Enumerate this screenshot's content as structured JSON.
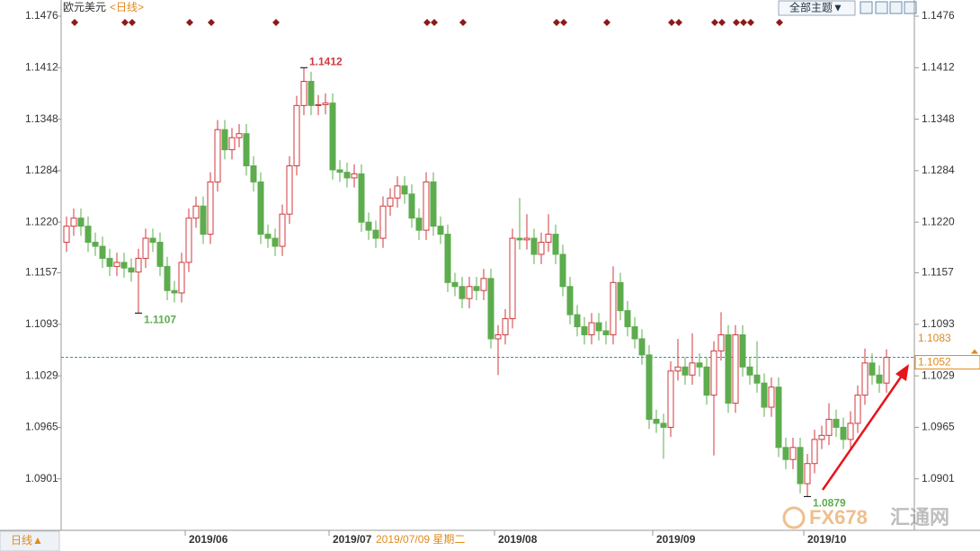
{
  "chart_data": {
    "type": "candlestick",
    "title": "欧元美元",
    "subtitle": "<日线>",
    "categories": [
      null,
      null,
      null,
      null,
      null,
      null,
      null,
      null,
      null,
      null,
      null,
      null,
      null,
      null,
      null,
      null,
      null,
      "2019/06",
      null,
      null,
      null,
      null,
      null,
      null,
      null,
      null,
      null,
      null,
      null,
      null,
      null,
      null,
      null,
      null,
      null,
      null,
      null,
      "2019/07",
      null,
      null,
      null,
      null,
      null,
      null,
      null,
      null,
      null,
      null,
      null,
      null,
      null,
      null,
      null,
      null,
      null,
      null,
      null,
      null,
      null,
      null,
      "2019/08",
      null,
      null,
      null,
      null,
      null,
      null,
      null,
      null,
      null,
      null,
      null,
      null,
      null,
      null,
      null,
      null,
      null,
      null,
      null,
      null,
      null,
      "2019/09",
      null,
      null,
      null,
      null,
      null,
      null,
      null,
      null,
      null,
      null,
      null,
      null,
      null,
      null,
      null,
      null,
      null,
      null,
      null,
      null,
      "2019/10",
      null,
      null,
      null,
      null,
      null,
      null,
      null,
      null,
      null,
      null,
      null
    ],
    "open": [
      1.1195,
      1.1215,
      1.1225,
      1.1215,
      1.1195,
      1.119,
      1.1175,
      1.1165,
      1.117,
      1.1163,
      1.1158,
      1.1175,
      1.12,
      1.1195,
      1.1165,
      1.1135,
      1.1132,
      1.117,
      1.1225,
      1.124,
      1.1205,
      1.127,
      1.1335,
      1.131,
      1.1325,
      1.133,
      1.129,
      1.127,
      1.1205,
      1.12,
      1.119,
      1.123,
      1.129,
      1.1365,
      1.1395,
      1.1365,
      1.1366,
      1.1368,
      1.1285,
      1.1282,
      1.1275,
      1.128,
      1.122,
      1.121,
      1.12,
      1.124,
      1.125,
      1.1265,
      1.1255,
      1.1225,
      1.121,
      1.127,
      1.1215,
      1.1205,
      1.1145,
      1.114,
      1.1125,
      1.114,
      1.1135,
      1.115,
      1.1075,
      1.108,
      1.11,
      1.12,
      1.1198,
      1.12,
      1.118,
      1.1195,
      1.1205,
      1.118,
      1.114,
      1.1105,
      1.109,
      1.108,
      1.1095,
      1.1085,
      1.108,
      1.1145,
      1.111,
      1.109,
      1.1075,
      1.1055,
      1.0975,
      1.097,
      1.0965,
      1.1035,
      1.104,
      1.103,
      1.1045,
      1.104,
      1.1005,
      1.106,
      1.108,
      1.0995,
      1.108,
      1.104,
      1.103,
      1.102,
      1.099,
      1.1015,
      1.094,
      1.0925,
      1.094,
      1.0895,
      1.092,
      1.095,
      1.0955,
      1.0975,
      1.0965,
      1.095,
      1.097,
      1.1005,
      1.1045,
      1.103,
      1.102
    ],
    "high": [
      1.1227,
      1.1237,
      1.1237,
      1.1227,
      1.1207,
      1.1202,
      1.1187,
      1.1182,
      1.1182,
      1.1175,
      1.1187,
      1.1212,
      1.1212,
      1.1207,
      1.1177,
      1.1147,
      1.1182,
      1.1237,
      1.1252,
      1.1252,
      1.1282,
      1.1347,
      1.1347,
      1.1337,
      1.1342,
      1.1342,
      1.1302,
      1.1282,
      1.1217,
      1.1212,
      1.1242,
      1.1302,
      1.1377,
      1.1412,
      1.1407,
      1.1378,
      1.138,
      1.138,
      1.1297,
      1.1294,
      1.1292,
      1.1292,
      1.1232,
      1.1222,
      1.1252,
      1.1262,
      1.1277,
      1.1277,
      1.1267,
      1.1237,
      1.1282,
      1.1282,
      1.1227,
      1.1217,
      1.1157,
      1.1152,
      1.1152,
      1.1152,
      1.1162,
      1.1162,
      1.1092,
      1.1112,
      1.1212,
      1.125,
      1.123,
      1.1212,
      1.1207,
      1.123,
      1.1217,
      1.1192,
      1.1152,
      1.1117,
      1.1102,
      1.1107,
      1.1107,
      1.1097,
      1.1165,
      1.1157,
      1.1122,
      1.1102,
      1.1087,
      1.1067,
      1.0987,
      1.0982,
      1.1047,
      1.1075,
      1.1052,
      1.1082,
      1.1057,
      1.1052,
      1.1072,
      1.1108,
      1.1092,
      1.1092,
      1.1092,
      1.1052,
      1.1072,
      1.1032,
      1.1027,
      1.1027,
      1.0952,
      1.0952,
      1.0952,
      1.0932,
      1.0962,
      1.0967,
      1.0995,
      1.0987,
      1.0977,
      1.0985,
      1.1017,
      1.1063,
      1.1057,
      1.1042,
      1.1062
    ],
    "low": [
      1.1183,
      1.1203,
      1.1203,
      1.1183,
      1.1178,
      1.1163,
      1.1153,
      1.1153,
      1.1151,
      1.1146,
      1.1107,
      1.1163,
      1.1183,
      1.1153,
      1.1123,
      1.112,
      1.112,
      1.1158,
      1.1213,
      1.1193,
      1.1193,
      1.1258,
      1.1298,
      1.1298,
      1.1313,
      1.1278,
      1.1258,
      1.1193,
      1.1188,
      1.1178,
      1.1178,
      1.1218,
      1.1278,
      1.1353,
      1.1353,
      1.1353,
      1.1354,
      1.1273,
      1.127,
      1.1263,
      1.1263,
      1.1208,
      1.1198,
      1.1188,
      1.1188,
      1.1228,
      1.1238,
      1.1243,
      1.1213,
      1.1198,
      1.1198,
      1.1203,
      1.1193,
      1.1133,
      1.1128,
      1.1113,
      1.1113,
      1.1123,
      1.1123,
      1.1063,
      1.103,
      1.1068,
      1.1088,
      1.1186,
      1.1186,
      1.1168,
      1.1168,
      1.1183,
      1.1168,
      1.1128,
      1.1093,
      1.1078,
      1.1068,
      1.1068,
      1.1073,
      1.1068,
      1.1068,
      1.1098,
      1.1078,
      1.1063,
      1.1043,
      1.0963,
      1.0958,
      1.0926,
      1.0953,
      1.1023,
      1.1018,
      1.1018,
      1.1028,
      1.0993,
      1.093,
      1.1048,
      1.0983,
      1.0983,
      1.1028,
      1.1018,
      1.1008,
      1.0978,
      1.0978,
      1.0928,
      1.0913,
      1.0913,
      1.0883,
      1.0879,
      1.0908,
      1.0938,
      1.0943,
      1.0953,
      1.0938,
      1.0938,
      1.0958,
      1.0993,
      1.1018,
      1.1008,
      1.1008
    ],
    "close": [
      1.1215,
      1.1225,
      1.1215,
      1.1195,
      1.119,
      1.1175,
      1.1165,
      1.117,
      1.1163,
      1.1158,
      1.1175,
      1.12,
      1.1195,
      1.1165,
      1.1135,
      1.1132,
      1.117,
      1.1225,
      1.124,
      1.1205,
      1.127,
      1.1335,
      1.131,
      1.1325,
      1.133,
      1.129,
      1.127,
      1.1205,
      1.12,
      1.119,
      1.123,
      1.129,
      1.1365,
      1.1395,
      1.1365,
      1.1366,
      1.1368,
      1.1285,
      1.1282,
      1.1275,
      1.128,
      1.122,
      1.121,
      1.12,
      1.124,
      1.125,
      1.1265,
      1.1255,
      1.1225,
      1.121,
      1.127,
      1.1215,
      1.1205,
      1.1145,
      1.114,
      1.1125,
      1.114,
      1.1135,
      1.115,
      1.1075,
      1.108,
      1.11,
      1.12,
      1.1198,
      1.12,
      1.118,
      1.1195,
      1.1205,
      1.118,
      1.114,
      1.1105,
      1.109,
      1.108,
      1.1095,
      1.1085,
      1.108,
      1.1145,
      1.111,
      1.109,
      1.1075,
      1.1055,
      1.0975,
      1.097,
      1.0965,
      1.1035,
      1.104,
      1.103,
      1.1045,
      1.104,
      1.1005,
      1.106,
      1.108,
      1.0995,
      1.108,
      1.104,
      1.103,
      1.102,
      1.099,
      1.1015,
      1.094,
      1.0925,
      1.094,
      1.0895,
      1.092,
      1.095,
      1.0955,
      1.0975,
      1.0965,
      1.095,
      1.097,
      1.1005,
      1.1045,
      1.103,
      1.102,
      1.1052
    ],
    "up_color": "#d0393e",
    "down_color": "#5dac4e",
    "ylim": [
      1.0837,
      1.1476
    ],
    "yticks": [
      1.1476,
      1.1412,
      1.1348,
      1.1284,
      {
        "value": 1.122,
        "label": "1.1220"
      },
      1.1157,
      1.1093,
      1.1029,
      1.0965,
      1.0901
    ],
    "marker_price": 1.1083,
    "cursor_label": "2019/07/09 星期二"
  },
  "toolbar": {
    "theme_button": "全部主题▼"
  },
  "footer": {
    "period": "日线▲"
  },
  "watermark": {
    "brand": "FX678",
    "name": "汇通网"
  }
}
